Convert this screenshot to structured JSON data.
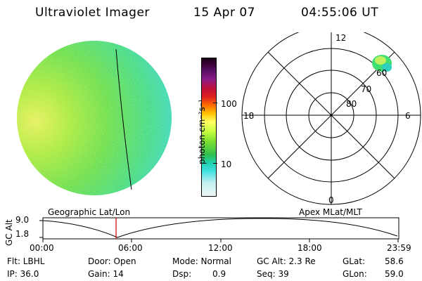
{
  "header": {
    "instrument": "Ultraviolet Imager",
    "date": "15 Apr 07",
    "time": "04:55:06 UT"
  },
  "colorbar": {
    "unit_label": "photon cm⁻²s⁻¹",
    "ticks": [
      "100",
      "10"
    ],
    "colors": [
      "#1a0015",
      "#3a0033",
      "#5a1066",
      "#8a1a8a",
      "#c0103a",
      "#e02020",
      "#ff6a00",
      "#ffc000",
      "#ffff60",
      "#c8ff40",
      "#80e030",
      "#30c050",
      "#20d0b0",
      "#40e0e0",
      "#c0f0f0",
      "#f0f8f8"
    ]
  },
  "image_panel": {
    "disk_colors": [
      "#f0f060",
      "#a0ee40",
      "#60e060",
      "#40e0c0"
    ],
    "meridian_color": "#000000"
  },
  "polar_plot": {
    "mlt_labels": {
      "top": "12",
      "left": "18",
      "right": "6",
      "bottom": "0"
    },
    "lat_labels": [
      "60",
      "70",
      "80"
    ],
    "blob_colors": [
      "#40e070",
      "#c0f060",
      "#30d0c0"
    ]
  },
  "altitude_panel": {
    "left_title": "Geographic Lat/Lon",
    "right_title": "Apex MLat/MLT",
    "ylabel": "GC Alt",
    "ytick_top": "9.0",
    "ytick_bottom": "1.8",
    "xticks": [
      "00:00",
      "06:00",
      "12:00",
      "18:00",
      "23:59"
    ],
    "marker_color": "#cc0000"
  },
  "status": {
    "filter": "Flt: LBHL",
    "ip": "IP: 36.0",
    "door": "Door: Open",
    "gain": "Gain: 14",
    "mode": "Mode: Normal",
    "dsp_label": "Dsp:",
    "dsp_value": "0.9",
    "gc_alt": "GC Alt: 2.3 Re",
    "seq": "Seq: 39",
    "glat": "GLat:",
    "glat_value": "58.6",
    "glon": "GLon:",
    "glon_value": "59.0"
  }
}
